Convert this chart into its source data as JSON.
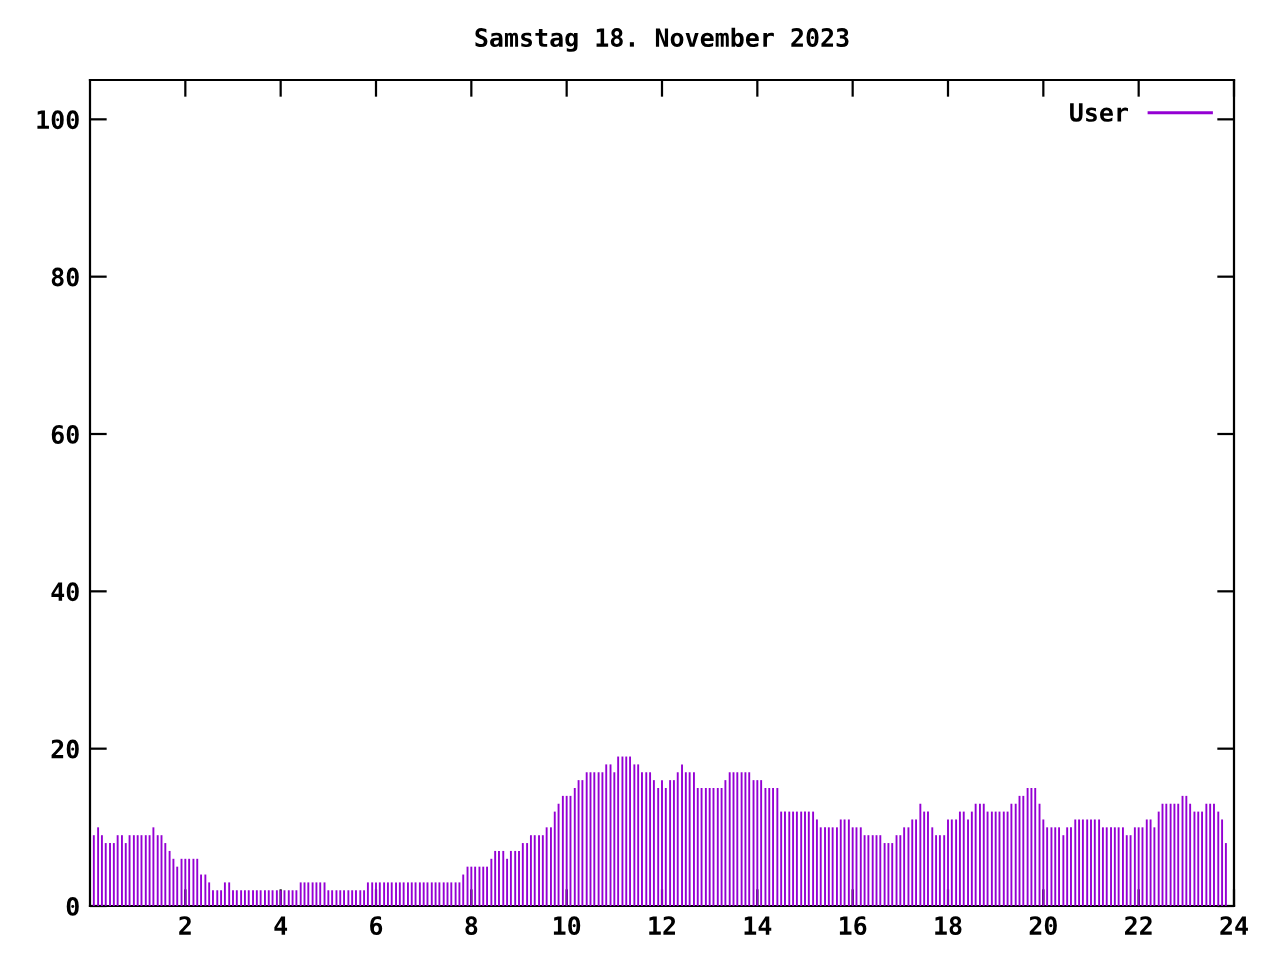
{
  "chart_data": {
    "type": "bar",
    "title": "Samstag 18. November 2023",
    "x": [
      0.08,
      0.17,
      0.25,
      0.33,
      0.42,
      0.5,
      0.58,
      0.67,
      0.75,
      0.83,
      0.92,
      1,
      1.08,
      1.17,
      1.25,
      1.33,
      1.42,
      1.5,
      1.58,
      1.67,
      1.75,
      1.83,
      1.92,
      2,
      2.08,
      2.17,
      2.25,
      2.33,
      2.42,
      2.5,
      2.58,
      2.67,
      2.75,
      2.83,
      2.92,
      3,
      3.08,
      3.17,
      3.25,
      3.33,
      3.42,
      3.5,
      3.58,
      3.67,
      3.75,
      3.83,
      3.92,
      4,
      4.08,
      4.17,
      4.25,
      4.33,
      4.42,
      4.5,
      4.58,
      4.67,
      4.75,
      4.83,
      4.92,
      5,
      5.08,
      5.17,
      5.25,
      5.33,
      5.42,
      5.5,
      5.58,
      5.67,
      5.75,
      5.83,
      5.92,
      6,
      6.08,
      6.17,
      6.25,
      6.33,
      6.42,
      6.5,
      6.58,
      6.67,
      6.75,
      6.83,
      6.92,
      7,
      7.08,
      7.17,
      7.25,
      7.33,
      7.42,
      7.5,
      7.58,
      7.67,
      7.75,
      7.83,
      7.92,
      8,
      8.08,
      8.17,
      8.25,
      8.33,
      8.42,
      8.5,
      8.58,
      8.67,
      8.75,
      8.83,
      8.92,
      9,
      9.08,
      9.17,
      9.25,
      9.33,
      9.42,
      9.5,
      9.58,
      9.67,
      9.75,
      9.83,
      9.92,
      10,
      10.08,
      10.17,
      10.25,
      10.33,
      10.42,
      10.5,
      10.58,
      10.67,
      10.75,
      10.83,
      10.92,
      11,
      11.08,
      11.17,
      11.25,
      11.33,
      11.42,
      11.5,
      11.58,
      11.67,
      11.75,
      11.83,
      11.92,
      12,
      12.08,
      12.17,
      12.25,
      12.33,
      12.42,
      12.5,
      12.58,
      12.67,
      12.75,
      12.83,
      12.92,
      13,
      13.08,
      13.17,
      13.25,
      13.33,
      13.42,
      13.5,
      13.58,
      13.67,
      13.75,
      13.83,
      13.92,
      14,
      14.08,
      14.17,
      14.25,
      14.33,
      14.42,
      14.5,
      14.58,
      14.67,
      14.75,
      14.83,
      14.92,
      15,
      15.08,
      15.17,
      15.25,
      15.33,
      15.42,
      15.5,
      15.58,
      15.67,
      15.75,
      15.83,
      15.92,
      16,
      16.08,
      16.17,
      16.25,
      16.33,
      16.42,
      16.5,
      16.58,
      16.67,
      16.75,
      16.83,
      16.92,
      17,
      17.08,
      17.17,
      17.25,
      17.33,
      17.42,
      17.5,
      17.58,
      17.67,
      17.75,
      17.83,
      17.92,
      18,
      18.08,
      18.17,
      18.25,
      18.33,
      18.42,
      18.5,
      18.58,
      18.67,
      18.75,
      18.83,
      18.92,
      19,
      19.08,
      19.17,
      19.25,
      19.33,
      19.42,
      19.5,
      19.58,
      19.67,
      19.75,
      19.83,
      19.92,
      20,
      20.08,
      20.17,
      20.25,
      20.33,
      20.42,
      20.5,
      20.58,
      20.67,
      20.75,
      20.83,
      20.92,
      21,
      21.08,
      21.17,
      21.25,
      21.33,
      21.42,
      21.5,
      21.58,
      21.67,
      21.75,
      21.83,
      21.92,
      22,
      22.08,
      22.17,
      22.25,
      22.33,
      22.42,
      22.5,
      22.58,
      22.67,
      22.75,
      22.83,
      22.92,
      23,
      23.08,
      23.17,
      23.25,
      23.33,
      23.42,
      23.5,
      23.58,
      23.67,
      23.75,
      23.83
    ],
    "series": [
      {
        "name": "User",
        "color": "#9400d3",
        "values": [
          9,
          10,
          9,
          8,
          8,
          8,
          9,
          9,
          8,
          9,
          9,
          9,
          9,
          9,
          9,
          10,
          9,
          9,
          8,
          7,
          6,
          5,
          6,
          6,
          6,
          6,
          6,
          4,
          4,
          3,
          2,
          2,
          2,
          3,
          3,
          2,
          2,
          2,
          2,
          2,
          2,
          2,
          2,
          2,
          2,
          2,
          2,
          2,
          2,
          2,
          2,
          2,
          3,
          3,
          3,
          3,
          3,
          3,
          3,
          2,
          2,
          2,
          2,
          2,
          2,
          2,
          2,
          2,
          2,
          3,
          3,
          3,
          3,
          3,
          3,
          3,
          3,
          3,
          3,
          3,
          3,
          3,
          3,
          3,
          3,
          3,
          3,
          3,
          3,
          3,
          3,
          3,
          3,
          4,
          5,
          5,
          5,
          5,
          5,
          5,
          6,
          7,
          7,
          7,
          6,
          7,
          7,
          7,
          8,
          8,
          9,
          9,
          9,
          9,
          10,
          10,
          12,
          13,
          14,
          14,
          14,
          15,
          16,
          16,
          17,
          17,
          17,
          17,
          17,
          18,
          18,
          17,
          19,
          19,
          19,
          19,
          18,
          18,
          17,
          17,
          17,
          16,
          15,
          16,
          15,
          16,
          16,
          17,
          18,
          17,
          17,
          17,
          15,
          15,
          15,
          15,
          15,
          15,
          15,
          16,
          17,
          17,
          17,
          17,
          17,
          17,
          16,
          16,
          16,
          15,
          15,
          15,
          15,
          12,
          12,
          12,
          12,
          12,
          12,
          12,
          12,
          12,
          11,
          10,
          10,
          10,
          10,
          10,
          11,
          11,
          11,
          10,
          10,
          10,
          9,
          9,
          9,
          9,
          9,
          8,
          8,
          8,
          9,
          9,
          10,
          10,
          11,
          11,
          13,
          12,
          12,
          10,
          9,
          9,
          9,
          11,
          11,
          11,
          12,
          12,
          11,
          12,
          13,
          13,
          13,
          12,
          12,
          12,
          12,
          12,
          12,
          13,
          13,
          14,
          14,
          15,
          15,
          15,
          13,
          11,
          10,
          10,
          10,
          10,
          9,
          10,
          10,
          11,
          11,
          11,
          11,
          11,
          11,
          11,
          10,
          10,
          10,
          10,
          10,
          10,
          9,
          9,
          10,
          10,
          10,
          11,
          11,
          10,
          12,
          13,
          13,
          13,
          13,
          13,
          14,
          14,
          13,
          12,
          12,
          12,
          13,
          13,
          13,
          12,
          11,
          8
        ]
      }
    ],
    "xlim": [
      0,
      24
    ],
    "xticks": [
      2,
      4,
      6,
      8,
      10,
      12,
      14,
      16,
      18,
      20,
      22,
      24
    ],
    "ylim": [
      0,
      105
    ],
    "yticks": [
      0,
      20,
      40,
      60,
      80,
      100
    ],
    "grid": false,
    "legend": "top right"
  }
}
